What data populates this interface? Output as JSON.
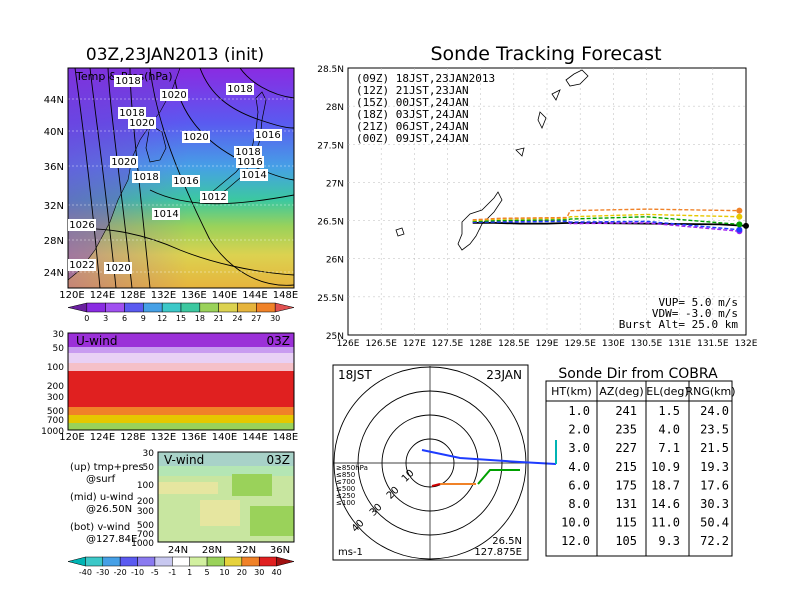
{
  "left_title": "03Z,23JAN2013 (init)",
  "right_title": "Sonde Tracking Forecast",
  "map_panel": {
    "label": "Temp & Pres(hPa)",
    "lat_labels": [
      "44N",
      "40N",
      "36N",
      "32N",
      "28N",
      "24N"
    ],
    "lon_labels": [
      "120E",
      "124E",
      "128E",
      "132E",
      "136E",
      "140E",
      "144E",
      "148E"
    ],
    "isobar_labels": [
      "1018",
      "1020",
      "1018",
      "1018",
      "1020",
      "1016",
      "1020",
      "1018",
      "1020",
      "1016",
      "1014",
      "1018",
      "1016",
      "1012",
      "1014",
      "1026",
      "1022",
      "1020"
    ],
    "colorbar_ticks": [
      "0",
      "3",
      "6",
      "9",
      "12",
      "15",
      "18",
      "21",
      "24",
      "27",
      "30"
    ]
  },
  "u_panel": {
    "label": "U-wind",
    "time": "03Z",
    "p_labels": [
      "30",
      "50",
      "100",
      "200",
      "300",
      "500",
      "700",
      "1000"
    ],
    "lon_labels": [
      "120E",
      "124E",
      "128E",
      "132E",
      "136E",
      "140E",
      "144E",
      "148E"
    ]
  },
  "v_panel": {
    "label": "V-wind",
    "time": "03Z",
    "p_labels": [
      "30",
      "50",
      "100",
      "200",
      "300",
      "500",
      "700",
      "1000"
    ],
    "lat_labels": [
      "24N",
      "28N",
      "32N",
      "36N"
    ],
    "colorbar_ticks": [
      "-40",
      "-30",
      "-20",
      "-10",
      "-5",
      "-1",
      "1",
      "5",
      "10",
      "20",
      "30",
      "40"
    ]
  },
  "legend_notes": [
    "(up) tmp+pres",
    "@surf",
    "(mid) u-wind",
    "@26.50N",
    "(bot) v-wind",
    "@127.84E"
  ],
  "track_chart": {
    "lat_labels": [
      "28.5N",
      "28N",
      "27.5N",
      "27N",
      "26.5N",
      "26N",
      "25.5N",
      "25N"
    ],
    "lon_labels": [
      "126E",
      "126.5E",
      "127E",
      "127.5E",
      "128E",
      "128.5E",
      "129E",
      "129.5E",
      "130E",
      "130.5E",
      "131E",
      "131.5E",
      "132E"
    ],
    "legend": [
      {
        "label": "(09Z)  18JST,23JAN2013",
        "color": "#000000"
      },
      {
        "label": "(12Z)  21JST,23JAN",
        "color": "#a020f0"
      },
      {
        "label": "(15Z)  00JST,24JAN",
        "color": "#1e3cff"
      },
      {
        "label": "(18Z)  03JST,24JAN",
        "color": "#00a000"
      },
      {
        "label": "(21Z)  06JST,24JAN",
        "color": "#e6c800"
      },
      {
        "label": "(00Z)  09JST,24JAN",
        "color": "#f08228"
      }
    ],
    "params": [
      "VUP=  5.0  m/s",
      "VDW=  -3.0  m/s",
      "Burst Alt=  25.0  km"
    ]
  },
  "chart_data": {
    "type": "line",
    "xlim": [
      126,
      132
    ],
    "ylim": [
      25,
      28.5
    ],
    "series": [
      {
        "name": "(09Z)",
        "color": "#000000",
        "x": [
          127.88,
          128.2,
          128.6,
          129.0,
          129.35,
          131.6,
          132.0
        ],
        "y": [
          26.47,
          26.47,
          26.46,
          26.46,
          26.47,
          26.45,
          26.43
        ]
      },
      {
        "name": "(12Z)",
        "color": "#a020f0",
        "x": [
          127.88,
          128.3,
          129.3,
          129.35,
          130.5,
          131.9
        ],
        "y": [
          26.48,
          26.49,
          26.5,
          26.46,
          26.47,
          26.36
        ]
      },
      {
        "name": "(15Z)",
        "color": "#1e3cff",
        "x": [
          127.88,
          128.3,
          129.3,
          129.35,
          130.5,
          131.9
        ],
        "y": [
          26.48,
          26.48,
          26.49,
          26.48,
          26.49,
          26.38
        ]
      },
      {
        "name": "(18Z)",
        "color": "#00a000",
        "x": [
          127.88,
          128.3,
          129.3,
          129.35,
          130.5,
          131.9
        ],
        "y": [
          26.49,
          26.5,
          26.51,
          26.52,
          26.55,
          26.45
        ]
      },
      {
        "name": "(21Z)",
        "color": "#e6c800",
        "x": [
          127.88,
          128.3,
          129.3,
          129.35,
          130.5,
          131.9
        ],
        "y": [
          26.5,
          26.52,
          26.53,
          26.55,
          26.58,
          26.55
        ]
      },
      {
        "name": "(00Z)",
        "color": "#f08228",
        "x": [
          127.88,
          128.3,
          129.3,
          129.35,
          130.5,
          131.9
        ],
        "y": [
          26.51,
          26.53,
          26.54,
          26.63,
          26.65,
          26.63
        ]
      }
    ]
  },
  "polar": {
    "time_label": "18JST",
    "date_label": "23JAN",
    "speed_labels": [
      "10",
      "20",
      "30",
      "40"
    ],
    "unit": "ms-1",
    "loc_lat": "26.5N",
    "loc_lon": "127.875E",
    "levels": [
      {
        "label": "≥850hPa",
        "color": "#d00000"
      },
      {
        "label": "≤850",
        "color": "#f08228"
      },
      {
        "label": "≤700",
        "color": "#e6c800"
      },
      {
        "label": "≤500",
        "color": "#00a000"
      },
      {
        "label": "≤250",
        "color": "#00b4b4"
      },
      {
        "label": "≤100",
        "color": "#1e3cff"
      }
    ]
  },
  "table": {
    "title": "Sonde Dir from COBRA",
    "headers": [
      "HT(km)",
      "AZ(deg)",
      "EL(deg)",
      "RNG(km)"
    ],
    "rows": [
      [
        "1.0",
        "241",
        "1.5",
        "24.0"
      ],
      [
        "2.0",
        "235",
        "4.0",
        "23.5"
      ],
      [
        "3.0",
        "227",
        "7.1",
        "21.5"
      ],
      [
        "4.0",
        "215",
        "10.9",
        "19.3"
      ],
      [
        "6.0",
        "175",
        "18.7",
        "17.6"
      ],
      [
        "8.0",
        "131",
        "14.6",
        "30.3"
      ],
      [
        "10.0",
        "115",
        "11.0",
        "50.4"
      ],
      [
        "12.0",
        "105",
        "9.3",
        "72.2"
      ]
    ]
  }
}
